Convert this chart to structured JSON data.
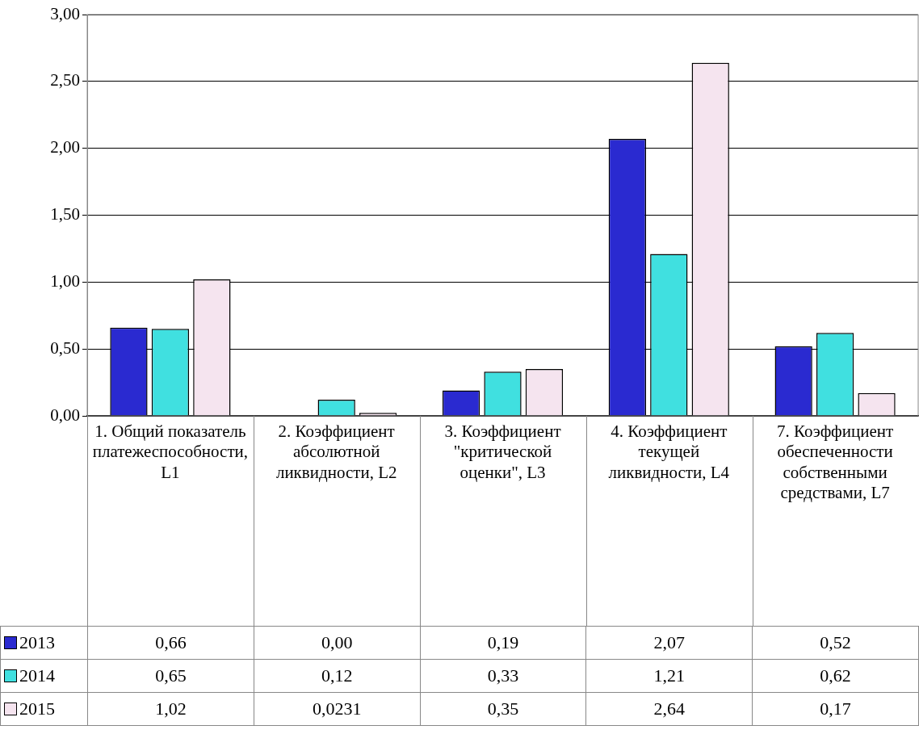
{
  "chart_data": {
    "type": "bar",
    "categories": [
      "1. Общий показатель платежеспособности, L1",
      "2. Коэффициент абсолютной ликвидности, L2",
      "3. Коэффициент \"критической оценки\", L3",
      "4. Коэффициент текущей ликвидности, L4",
      "7. Коэффициент обеспеченности собственными средствами, L7"
    ],
    "series": [
      {
        "name": "2013",
        "color": "#2a2ad0",
        "values": [
          0.66,
          0.0,
          0.19,
          2.07,
          0.52
        ],
        "value_labels": [
          "0,66",
          "0,00",
          "0,19",
          "2,07",
          "0,52"
        ]
      },
      {
        "name": "2014",
        "color": "#40e0e0",
        "values": [
          0.65,
          0.12,
          0.33,
          1.21,
          0.62
        ],
        "value_labels": [
          "0,65",
          "0,12",
          "0,33",
          "1,21",
          "0,62"
        ]
      },
      {
        "name": "2015",
        "color": "#f5e4ef",
        "values": [
          1.02,
          0.0231,
          0.35,
          2.64,
          0.17
        ],
        "value_labels": [
          "1,02",
          "0,0231",
          "0,35",
          "2,64",
          "0,17"
        ]
      }
    ],
    "ylim": [
      0,
      3
    ],
    "yticks": [
      {
        "value": 0,
        "label": "0,00"
      },
      {
        "value": 0.5,
        "label": "0,50"
      },
      {
        "value": 1,
        "label": "1,00"
      },
      {
        "value": 1.5,
        "label": "1,50"
      },
      {
        "value": 2,
        "label": "2,00"
      },
      {
        "value": 2.5,
        "label": "2,50"
      },
      {
        "value": 3,
        "label": "3,00"
      }
    ],
    "grid": "y",
    "legend": "bottom"
  }
}
